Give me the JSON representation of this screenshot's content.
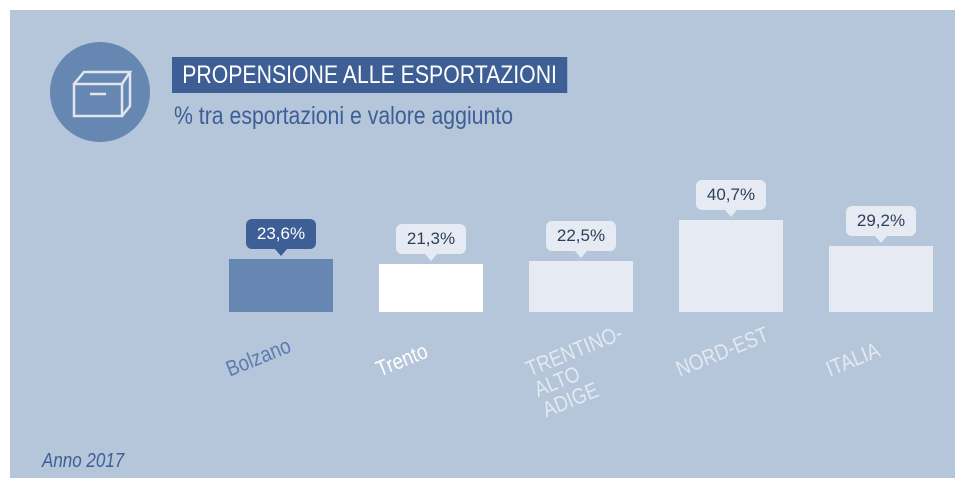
{
  "chart_data": {
    "type": "bar",
    "title": "PROPENSIONE ALLE ESPORTAZIONI",
    "subtitle": "% tra esportazioni e valore aggiunto",
    "categories": [
      "Bolzano",
      "Trento",
      "TRENTINO-ALTO ADIGE",
      "NORD-EST",
      "ITALIA"
    ],
    "values": [
      23.6,
      21.3,
      22.5,
      40.7,
      29.2
    ],
    "value_labels": [
      "23,6%",
      "21,3%",
      "22,5%",
      "40,7%",
      "29,2%"
    ],
    "colors": [
      "#6787b3",
      "#ffffff",
      "#e6ebf3",
      "#e6ebf3",
      "#e6ebf3"
    ],
    "note": "Anno 2017"
  }
}
